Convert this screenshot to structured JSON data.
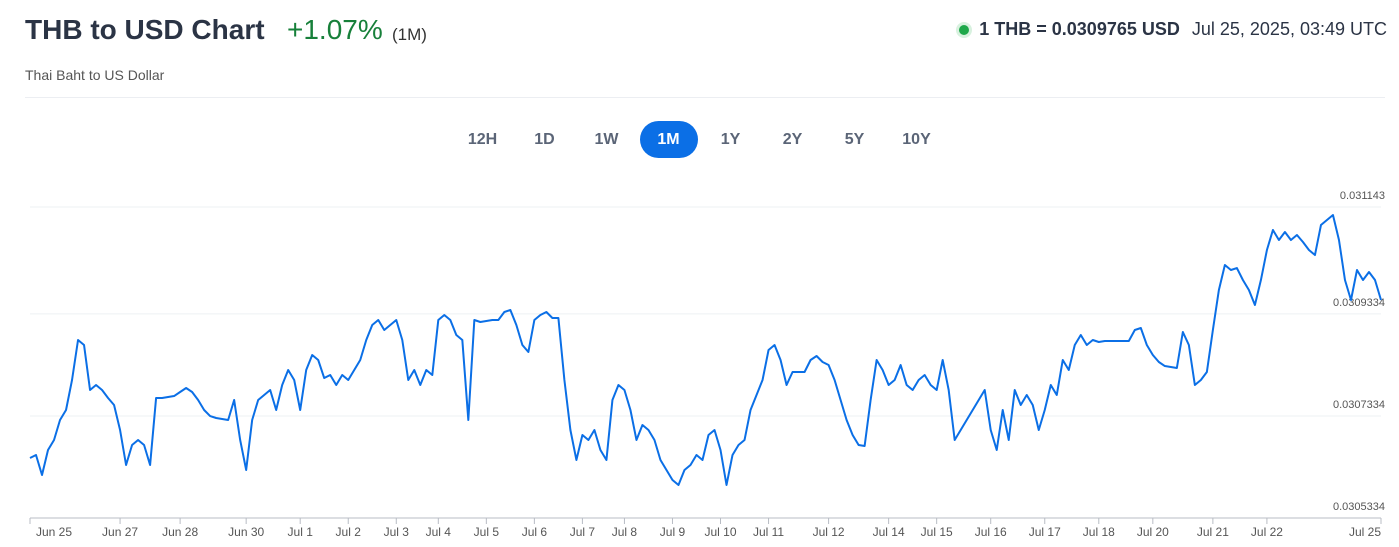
{
  "header": {
    "title": "THB to USD Chart",
    "change": "+1.07%",
    "period": "(1M)",
    "rate": "1 THB = 0.0309765 USD",
    "timestamp": "Jul 25, 2025, 03:49 UTC",
    "subtitle": "Thai Baht to US Dollar"
  },
  "ranges": {
    "options": [
      "12H",
      "1D",
      "1W",
      "1M",
      "1Y",
      "2Y",
      "5Y",
      "10Y"
    ],
    "active": "1M"
  },
  "chart_data": {
    "type": "line",
    "color": "#0b6fe6",
    "grid": true,
    "y_axis_side": "right",
    "ylim": [
      0.0305334,
      0.031143
    ],
    "yticks": [
      0.0305334,
      0.0307334,
      0.0309334,
      0.031143
    ],
    "categories": [
      "Jun 25",
      null,
      null,
      null,
      null,
      null,
      null,
      null,
      null,
      null,
      null,
      null,
      null,
      null,
      null,
      "Jun 27",
      null,
      null,
      null,
      null,
      null,
      null,
      null,
      null,
      null,
      "Jun 28",
      null,
      null,
      null,
      null,
      null,
      null,
      null,
      null,
      null,
      null,
      "Jun 30",
      null,
      null,
      null,
      null,
      null,
      null,
      null,
      null,
      "Jul 1",
      null,
      null,
      null,
      null,
      null,
      null,
      null,
      "Jul 2",
      null,
      null,
      null,
      null,
      null,
      null,
      null,
      "Jul 3",
      null,
      null,
      null,
      null,
      null,
      null,
      "Jul 4",
      null,
      null,
      null,
      null,
      null,
      null,
      null,
      "Jul 5",
      null,
      null,
      null,
      null,
      null,
      null,
      null,
      "Jul 6",
      null,
      null,
      null,
      null,
      null,
      null,
      null,
      "Jul 7",
      null,
      null,
      null,
      null,
      null,
      null,
      "Jul 8",
      null,
      null,
      null,
      null,
      null,
      null,
      null,
      "Jul 9",
      null,
      null,
      null,
      null,
      null,
      null,
      null,
      "Jul 10",
      null,
      null,
      null,
      null,
      null,
      null,
      null,
      "Jul 11",
      null,
      null,
      null,
      null,
      null,
      null,
      null,
      null,
      null,
      "Jul 12",
      null,
      null,
      null,
      null,
      null,
      null,
      null,
      null,
      null,
      "Jul 14",
      null,
      null,
      null,
      null,
      null,
      null,
      null,
      "Jul 15",
      null,
      null,
      null,
      null,
      null,
      null,
      null,
      null,
      "Jul 16",
      null,
      null,
      null,
      null,
      null,
      null,
      null,
      null,
      "Jul 17",
      null,
      null,
      null,
      null,
      null,
      null,
      null,
      null,
      "Jul 18",
      null,
      null,
      null,
      null,
      null,
      null,
      null,
      null,
      "Jul 20",
      null,
      null,
      null,
      null,
      null,
      null,
      null,
      null,
      null,
      "Jul 21",
      null,
      null,
      null,
      null,
      null,
      null,
      null,
      null,
      "Jul 22",
      null,
      null,
      null,
      null,
      null,
      null,
      null,
      null,
      null,
      null,
      null,
      null,
      null,
      null,
      null,
      null,
      null,
      null,
      "Jul 25"
    ],
    "values": [
      0.030651,
      0.0306569,
      0.0306177,
      0.0306667,
      0.0306863,
      0.0307255,
      0.0307451,
      0.0308039,
      0.0308823,
      0.0308725,
      0.0307843,
      0.0307941,
      0.0307843,
      0.0307686,
      0.0307549,
      0.0307059,
      0.0306373,
      0.0306765,
      0.0306863,
      0.0306765,
      0.0306373,
      0.0307686,
      0.0307686,
      0.0307706,
      0.0307725,
      0.0307804,
      0.0307882,
      0.0307804,
      0.0307647,
      0.0307451,
      0.0307333,
      0.0307294,
      0.0307275,
      0.0307255,
      0.0307647,
      0.0306863,
      0.0306275,
      0.0307255,
      0.0307647,
      0.0307745,
      0.0307843,
      0.0307451,
      0.0307941,
      0.0308235,
      0.0308039,
      0.0307451,
      0.0308235,
      0.0308529,
      0.0308431,
      0.0308078,
      0.0308137,
      0.0307941,
      0.0308137,
      0.0308039,
      0.0308235,
      0.0308431,
      0.0308823,
      0.0309117,
      0.0309215,
      0.0309019,
      0.0309117,
      0.0309215,
      0.0308823,
      0.0308039,
      0.0308235,
      0.0307941,
      0.0308235,
      0.0308137,
      0.0309215,
      0.0309313,
      0.0309215,
      0.0308921,
      0.0308823,
      0.0307255,
      0.0309215,
      0.0309176,
      0.0309195,
      0.0309215,
      0.0309215,
      0.0309372,
      0.0309411,
      0.0309117,
      0.0308725,
      0.0308588,
      0.0309215,
      0.0309313,
      0.0309372,
      0.0309254,
      0.0309254,
      0.0308039,
      0.0307059,
      0.0306471,
      0.0306961,
      0.0306863,
      0.0307059,
      0.0306667,
      0.0306471,
      0.0307647,
      0.0307941,
      0.0307843,
      0.0307451,
      0.0306863,
      0.0307157,
      0.0307059,
      0.0306863,
      0.0306471,
      0.0306275,
      0.0306079,
      0.0305981,
      0.0306275,
      0.0306373,
      0.0306569,
      0.0306471,
      0.0306961,
      0.0307059,
      0.0306667,
      0.0305981,
      0.0306569,
      0.0306765,
      0.0306863,
      0.0307451,
      0.0307745,
      0.0308039,
      0.0308627,
      0.0308725,
      0.0308431,
      0.0307941,
      0.0308196,
      0.0308196,
      0.0308196,
      0.0308431,
      0.0308509,
      0.0308392,
      0.0308333,
      0.0308039,
      0.0307647,
      0.0307255,
      0.0306961,
      0.0306765,
      0.0306745,
      0.0307647,
      0.0308431,
      0.0308235,
      0.0307941,
      0.0308039,
      0.0308333,
      0.0307941,
      0.0307843,
      0.0308039,
      0.0308137,
      0.0307941,
      0.0307843,
      0.0308431,
      0.0307843,
      0.0306863,
      0.0307059,
      0.0307255,
      0.0307451,
      0.0307647,
      0.0307843,
      0.0307059,
      0.0306667,
      0.0307451,
      0.0306863,
      0.0307843,
      0.0307549,
      0.0307745,
      0.0307549,
      0.0307059,
      0.0307451,
      0.0307941,
      0.0307745,
      0.0308431,
      0.0308235,
      0.0308725,
      0.0308921,
      0.0308725,
      0.0308823,
      0.0308784,
      0.0308803,
      0.0308803,
      0.0308803,
      0.0308803,
      0.0308803,
      0.0309019,
      0.0309058,
      0.0308725,
      0.0308529,
      0.0308392,
      0.0308313,
      0.0308294,
      0.0308274,
      0.030898,
      0.0308725,
      0.0307941,
      0.0308039,
      0.0308196,
      0.0309019,
      0.0309803,
      0.0310293,
      0.0310195,
      0.0310234,
      0.0309999,
      0.0309803,
      0.0309509,
      0.0309999,
      0.0310587,
      0.0310979,
      0.0310783,
      0.031094,
      0.0310783,
      0.0310881,
      0.0310744,
      0.0310587,
      0.0310489,
      0.0311077,
      0.0311175,
      0.0311273,
      0.0310783,
      0.0309999,
      0.0309607,
      0.0310195,
      0.0309999,
      0.0310156,
      0.0309999,
      0.0309607
    ]
  }
}
